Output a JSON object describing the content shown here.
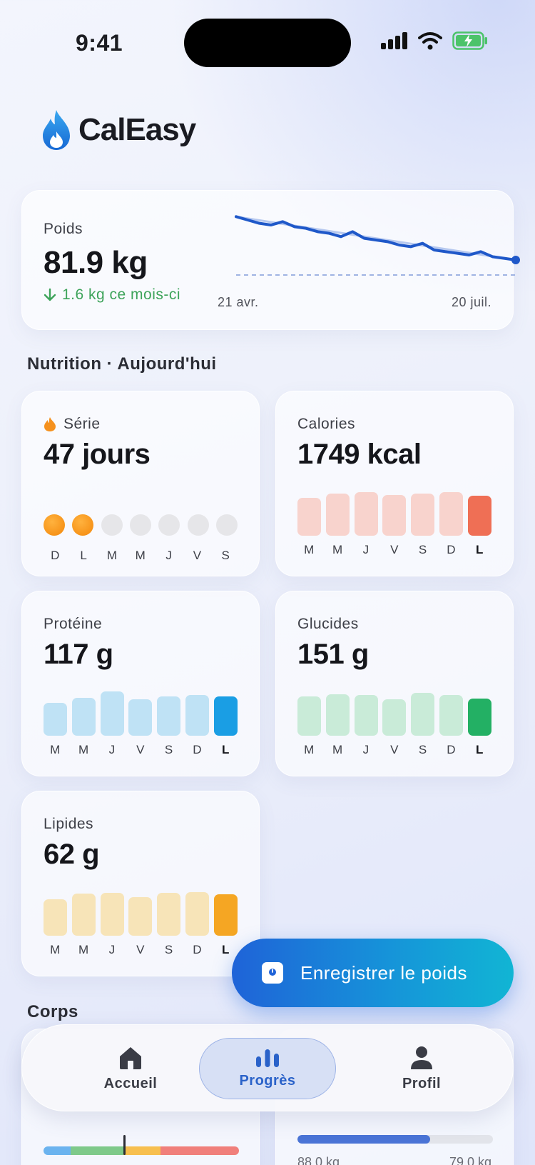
{
  "status_bar": {
    "time": "9:41"
  },
  "app": {
    "name": "CalEasy"
  },
  "weight": {
    "label": "Poids",
    "value": "81.9 kg",
    "delta": "1.6 kg ce mois-ci",
    "x_start": "21 avr.",
    "x_end": "20 juil.",
    "series": [
      84.5,
      84.3,
      84.1,
      84.0,
      84.2,
      83.9,
      83.8,
      83.6,
      83.5,
      83.3,
      83.6,
      83.2,
      83.1,
      83.0,
      82.8,
      82.7,
      82.9,
      82.5,
      82.4,
      82.3,
      82.2,
      82.4,
      82.1,
      82.0,
      81.9
    ],
    "goal_line": 81.0,
    "colors": {
      "line": "#1f58c9",
      "trend": "#9bb4ea",
      "goal": "#9fb3e3"
    }
  },
  "nutrition": {
    "section_title": "Nutrition · Aujourd'hui",
    "streak": {
      "label": "Série",
      "value": "47 jours",
      "days": [
        "D",
        "L",
        "M",
        "M",
        "J",
        "V",
        "S"
      ],
      "active": [
        true,
        true,
        false,
        false,
        false,
        false,
        false
      ]
    },
    "calories": {
      "label": "Calories",
      "value": "1749 kcal",
      "days": [
        "M",
        "M",
        "J",
        "V",
        "S",
        "D",
        "L"
      ],
      "levels": [
        0.9,
        1.0,
        1.03,
        0.97,
        1.0,
        1.03,
        0.95
      ],
      "color_past": "#f8d3cd",
      "color_today": "#ef6f55"
    },
    "protein": {
      "label": "Protéine",
      "value": "117 g",
      "days": [
        "M",
        "M",
        "J",
        "V",
        "S",
        "D",
        "L"
      ],
      "levels": [
        0.78,
        0.9,
        1.05,
        0.87,
        0.93,
        0.97,
        0.93
      ],
      "color_past": "#bfe2f5",
      "color_today": "#1a9ee4"
    },
    "carbs": {
      "label": "Glucides",
      "value": "151 g",
      "days": [
        "M",
        "M",
        "J",
        "V",
        "S",
        "D",
        "L"
      ],
      "levels": [
        0.93,
        0.98,
        0.96,
        0.87,
        1.02,
        0.97,
        0.88
      ],
      "color_past": "#c9ebd8",
      "color_today": "#23b064"
    },
    "fats": {
      "label": "Lipides",
      "value": "62 g",
      "days": [
        "M",
        "M",
        "J",
        "V",
        "S",
        "D",
        "L"
      ],
      "levels": [
        0.86,
        1.0,
        1.02,
        0.92,
        1.02,
        1.04,
        0.98
      ],
      "color_past": "#f7e4b8",
      "color_today": "#f5a623"
    }
  },
  "fab": {
    "label": "Enregistrer le poids"
  },
  "body": {
    "section_title": "Corps",
    "goal": {
      "start": "88.0 kg",
      "end": "79.0 kg",
      "progress": 0.68
    }
  },
  "tabs": [
    {
      "label": "Accueil"
    },
    {
      "label": "Progrès"
    },
    {
      "label": "Profil"
    }
  ]
}
